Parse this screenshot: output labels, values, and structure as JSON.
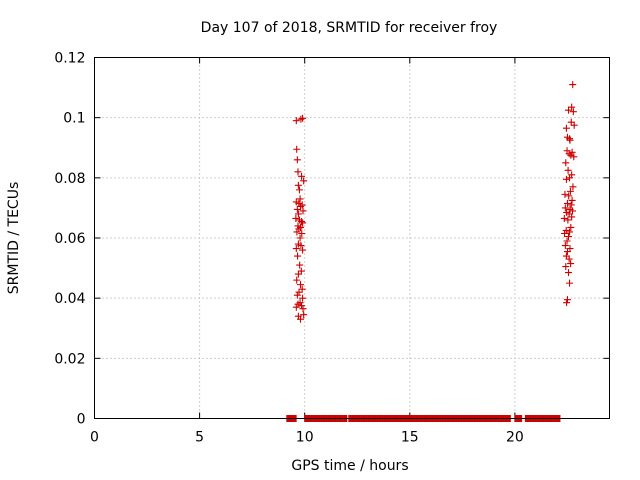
{
  "chart_data": {
    "type": "scatter",
    "title": "Day 107 of 2018, SRMTID for receiver froy",
    "xlabel": "GPS time / hours",
    "ylabel": "SRMTID / TECUs",
    "xlim": [
      0,
      24.5
    ],
    "ylim": [
      0,
      0.12
    ],
    "xticks": [
      0,
      5,
      10,
      15,
      20
    ],
    "xtick_labels": [
      "0",
      "5",
      "10",
      "15",
      "20"
    ],
    "yticks": [
      0,
      0.02,
      0.04,
      0.06,
      0.08,
      0.1,
      0.12
    ],
    "ytick_labels": [
      "0",
      "0.02",
      "0.04",
      "0.06",
      "0.08",
      "0.1",
      "0.12"
    ],
    "grid": true,
    "marker": "plus",
    "color": "#cc0000",
    "series": [
      {
        "name": "SRMTID cluster near 9.5-10 h",
        "x": [
          9.6,
          9.82,
          9.9,
          9.62,
          9.65,
          9.68,
          9.7,
          9.85,
          9.95,
          9.75,
          9.6,
          9.78,
          9.72,
          9.88,
          9.65,
          9.8,
          9.92,
          9.7,
          9.58,
          9.75,
          9.85,
          9.9,
          9.68,
          9.8,
          9.72,
          9.63,
          9.86,
          9.78,
          9.7,
          9.6,
          9.82,
          9.9,
          9.66,
          9.76,
          9.84,
          9.7,
          9.62,
          9.8,
          9.88,
          9.73,
          9.65,
          9.9,
          9.78,
          9.68,
          9.85,
          9.6,
          9.92,
          9.95,
          9.7,
          9.8
        ],
        "y": [
          0.099,
          0.0995,
          0.0998,
          0.0895,
          0.086,
          0.082,
          0.0775,
          0.0805,
          0.079,
          0.076,
          0.072,
          0.073,
          0.0715,
          0.071,
          0.0695,
          0.0705,
          0.069,
          0.068,
          0.0665,
          0.066,
          0.0655,
          0.065,
          0.064,
          0.0635,
          0.063,
          0.062,
          0.0615,
          0.06,
          0.058,
          0.0565,
          0.0575,
          0.056,
          0.054,
          0.051,
          0.049,
          0.048,
          0.046,
          0.0445,
          0.043,
          0.042,
          0.041,
          0.04,
          0.0385,
          0.038,
          0.0375,
          0.037,
          0.0365,
          0.0345,
          0.034,
          0.033
        ]
      },
      {
        "name": "SRMTID cluster near 22-23 h",
        "x": [
          22.75,
          22.7,
          22.78,
          22.55,
          22.68,
          22.45,
          22.82,
          22.5,
          22.62,
          22.6,
          22.72,
          22.48,
          22.66,
          22.58,
          22.8,
          22.42,
          22.53,
          22.7,
          22.6,
          22.45,
          22.76,
          22.64,
          22.38,
          22.56,
          22.72,
          22.5,
          22.68,
          22.4,
          22.62,
          22.74,
          22.46,
          22.58,
          22.7,
          22.35,
          22.52,
          22.66,
          22.44,
          22.6,
          22.36,
          22.55,
          22.48,
          22.4,
          22.62,
          22.5,
          22.45,
          22.58,
          22.65,
          22.42,
          22.55,
          22.6,
          22.5,
          22.46
        ],
        "y": [
          0.111,
          0.1035,
          0.102,
          0.1025,
          0.0985,
          0.0965,
          0.0975,
          0.0935,
          0.0925,
          0.093,
          0.0885,
          0.089,
          0.0875,
          0.088,
          0.087,
          0.085,
          0.0825,
          0.081,
          0.08,
          0.0795,
          0.077,
          0.0755,
          0.0745,
          0.074,
          0.0725,
          0.0715,
          0.071,
          0.07,
          0.0695,
          0.069,
          0.0685,
          0.068,
          0.067,
          0.0665,
          0.066,
          0.0635,
          0.0625,
          0.062,
          0.0615,
          0.0605,
          0.059,
          0.0575,
          0.0565,
          0.0555,
          0.054,
          0.053,
          0.0515,
          0.0505,
          0.0485,
          0.045,
          0.0395,
          0.0385
        ]
      },
      {
        "name": "Zero-value markers along baseline",
        "x_ranges": [
          [
            9.15,
            9.6
          ],
          [
            10.0,
            12.0
          ],
          [
            12.1,
            19.8
          ],
          [
            20.0,
            20.35
          ],
          [
            20.5,
            22.15
          ]
        ],
        "step": 0.04,
        "y": 0
      }
    ]
  }
}
